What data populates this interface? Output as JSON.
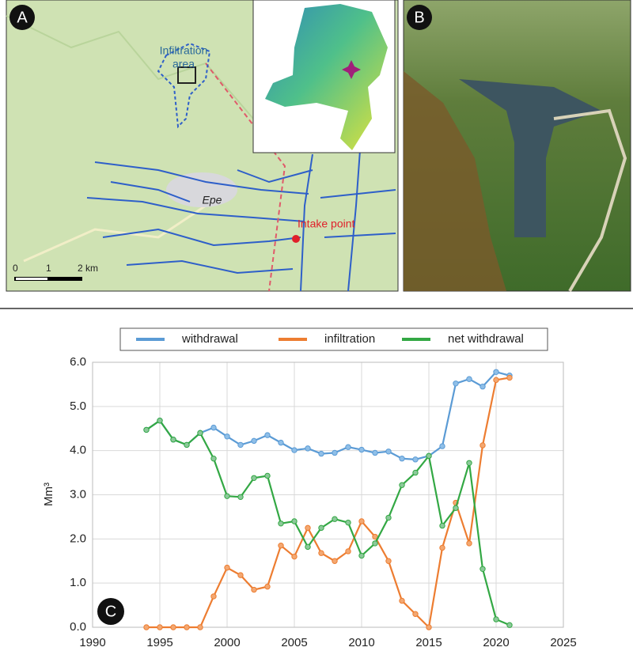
{
  "panels": {
    "a": {
      "label": "A",
      "infiltration_area": [
        "Infiltration",
        "area"
      ],
      "town": "Epe",
      "intake": "Intake point",
      "scale": [
        "0",
        "1",
        "2 km"
      ]
    },
    "b": {
      "label": "B"
    },
    "c": {
      "label": "C"
    }
  },
  "chart_data": {
    "type": "line",
    "ylabel": "Mm³",
    "x": [
      1994,
      1995,
      1996,
      1997,
      1998,
      1999,
      2000,
      2001,
      2002,
      2003,
      2004,
      2005,
      2006,
      2007,
      2008,
      2009,
      2010,
      2011,
      2012,
      2013,
      2014,
      2015,
      2016,
      2017,
      2018,
      2019,
      2020,
      2021
    ],
    "series": [
      {
        "name": "withdrawal",
        "color": "#5b9bd5",
        "marker": "#8fbfe8",
        "values": [
          4.47,
          4.68,
          4.25,
          4.13,
          4.4,
          4.52,
          4.32,
          4.13,
          4.22,
          4.35,
          4.18,
          4.01,
          4.05,
          3.93,
          3.95,
          4.08,
          4.02,
          3.95,
          3.98,
          3.82,
          3.8,
          3.88,
          4.1,
          5.52,
          5.62,
          5.45,
          5.78,
          5.7
        ]
      },
      {
        "name": "infiltration",
        "color": "#ed7d31",
        "marker": "#f3a872",
        "values": [
          0,
          0,
          0,
          0,
          0,
          0.7,
          1.35,
          1.18,
          0.85,
          0.92,
          1.85,
          1.6,
          2.25,
          1.68,
          1.5,
          1.72,
          2.4,
          2.05,
          1.5,
          0.6,
          0.3,
          0.0,
          1.8,
          2.82,
          1.9,
          4.12,
          5.6,
          5.65
        ]
      },
      {
        "name": "net withdrawal",
        "color": "#33a844",
        "marker": "#8cc99a",
        "values": [
          4.47,
          4.68,
          4.25,
          4.13,
          4.4,
          3.82,
          2.97,
          2.95,
          3.38,
          3.43,
          2.35,
          2.4,
          1.82,
          2.25,
          2.45,
          2.37,
          1.62,
          1.9,
          2.48,
          3.22,
          3.5,
          3.88,
          2.3,
          2.7,
          3.72,
          1.32,
          0.18,
          0.05
        ]
      }
    ],
    "xlim": [
      1990,
      2025
    ],
    "xticks": [
      1990,
      1995,
      2000,
      2005,
      2010,
      2015,
      2020,
      2025
    ],
    "ylim": [
      0,
      6
    ],
    "yticks": [
      {
        "value": 0,
        "label": "0.0"
      },
      {
        "value": 1,
        "label": "1.0"
      },
      {
        "value": 2,
        "label": "2.0"
      },
      {
        "value": 3,
        "label": "3.0"
      },
      {
        "value": 4,
        "label": "4.0"
      },
      {
        "value": 5,
        "label": "5.0"
      },
      {
        "value": 6,
        "label": "6.0"
      }
    ],
    "grid": true,
    "legend": "top"
  }
}
